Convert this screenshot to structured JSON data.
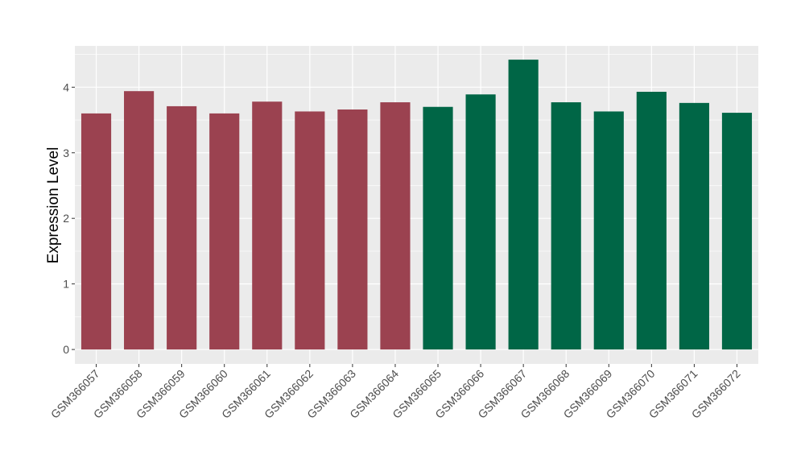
{
  "chart_data": {
    "type": "bar",
    "title": "",
    "xlabel": "",
    "ylabel": "Expression Level",
    "ylim": [
      -0.22,
      4.63
    ],
    "yticks": [
      0,
      1,
      2,
      3,
      4
    ],
    "grid": true,
    "categories": [
      "GSM366057",
      "GSM366058",
      "GSM366059",
      "GSM366060",
      "GSM366061",
      "GSM366062",
      "GSM366063",
      "GSM366064",
      "GSM366065",
      "GSM366066",
      "GSM366067",
      "GSM366068",
      "GSM366069",
      "GSM366070",
      "GSM366071",
      "GSM366072"
    ],
    "values": [
      3.6,
      3.94,
      3.71,
      3.6,
      3.78,
      3.63,
      3.66,
      3.77,
      3.7,
      3.89,
      4.42,
      3.77,
      3.63,
      3.93,
      3.76,
      3.61
    ],
    "groups": [
      0,
      0,
      0,
      0,
      0,
      0,
      0,
      0,
      1,
      1,
      1,
      1,
      1,
      1,
      1,
      1
    ],
    "group_colors": [
      "#9B4250",
      "#006646"
    ]
  }
}
